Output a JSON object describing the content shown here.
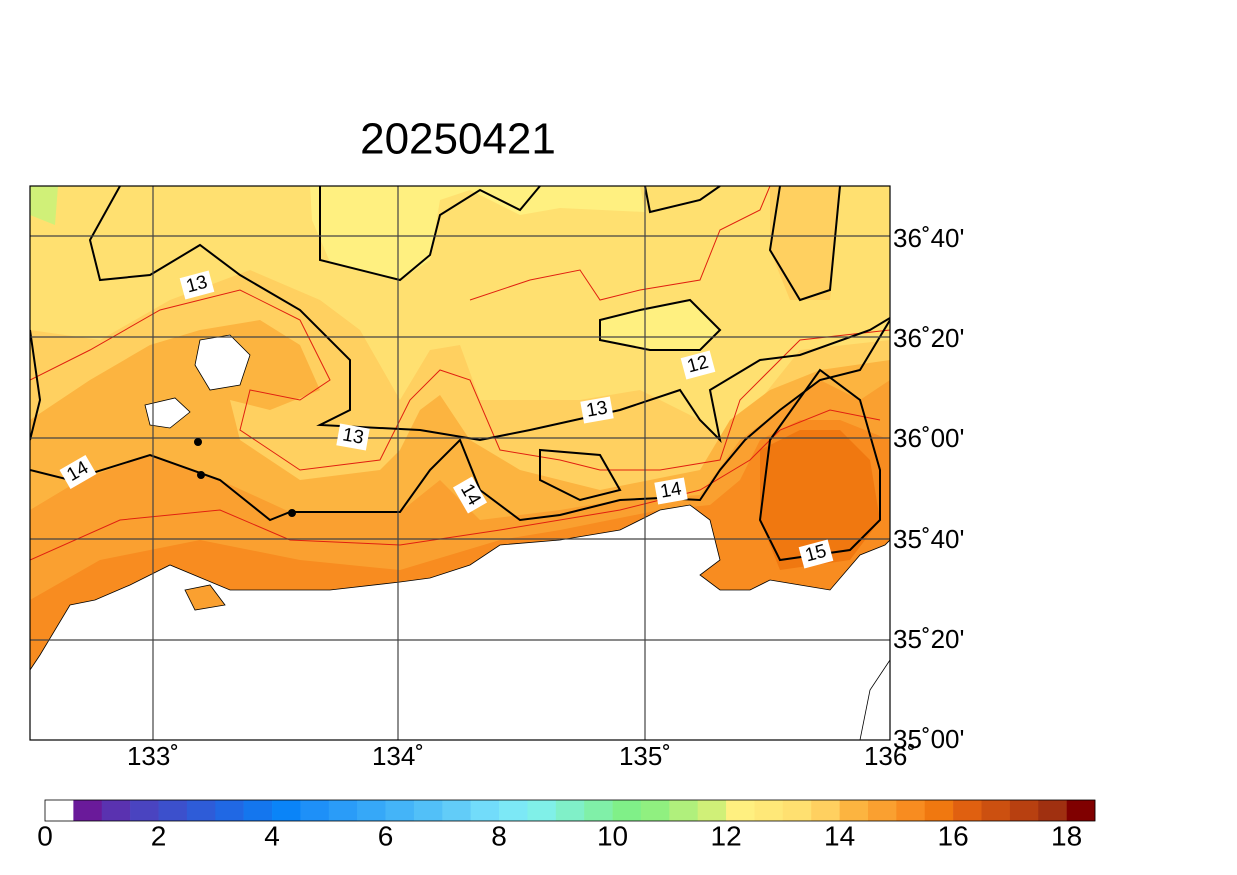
{
  "title": "20250421",
  "lat_labels": [
    "36˚40'",
    "36˚20'",
    "36˚00'",
    "35˚40'",
    "35˚20'",
    "35˚00'"
  ],
  "lon_labels": [
    "133˚",
    "134˚",
    "135˚",
    "136˚"
  ],
  "contour_labels": [
    "13",
    "13",
    "13",
    "12",
    "14",
    "14",
    "14",
    "15"
  ],
  "colorbar": {
    "labels": [
      0,
      2,
      4,
      6,
      8,
      10,
      12,
      14,
      16,
      18
    ],
    "colors": [
      "#ffffff",
      "#6a1a9a",
      "#5a32b0",
      "#4a44c0",
      "#3c50cc",
      "#2e5cd8",
      "#2068e4",
      "#1476ee",
      "#0a84f8",
      "#1e90f8",
      "#2a9cf8",
      "#36a8f8",
      "#44b4f8",
      "#52c0f8",
      "#62ccf8",
      "#72dcfa",
      "#7ce8f6",
      "#80f0e8",
      "#80f0c8",
      "#80f0a8",
      "#80f088",
      "#90f080",
      "#b0f07c",
      "#d0f078",
      "#fff080",
      "#ffe878",
      "#ffe070",
      "#ffd060",
      "#fcb440",
      "#faa030",
      "#f88c20",
      "#f07810",
      "#e06010",
      "#cc5010",
      "#b84010",
      "#a03010",
      "#800000"
    ]
  }
}
